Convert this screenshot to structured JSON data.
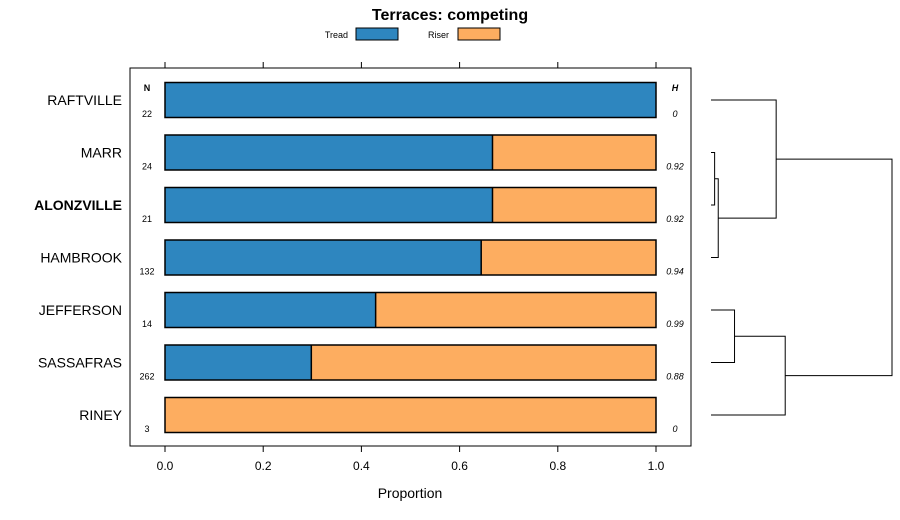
{
  "chart_data": {
    "type": "bar",
    "orientation": "horizontal",
    "stacked": true,
    "title": "Terraces: competing",
    "xlabel": "Proportion",
    "ylabel": "",
    "xlim": [
      -0.07,
      1.07
    ],
    "x_ticks": [
      "0.0",
      "0.2",
      "0.4",
      "0.6",
      "0.8",
      "1.0"
    ],
    "legend": {
      "placement": "top",
      "entries": [
        {
          "name": "Tread",
          "color": "#2e86bf"
        },
        {
          "name": "Riser",
          "color": "#fdad60"
        }
      ]
    },
    "categories": [
      "RAFTVILLE",
      "MARR",
      "ALONZVILLE",
      "HAMBROOK",
      "JEFFERSON",
      "SASSAFRAS",
      "RINEY"
    ],
    "highlighted_category": "ALONZVILLE",
    "series": [
      {
        "name": "Tread",
        "color": "#2e86bf",
        "values": [
          1.0,
          0.667,
          0.667,
          0.644,
          0.429,
          0.298,
          0.0
        ]
      },
      {
        "name": "Riser",
        "color": "#fdad60",
        "values": [
          0.0,
          0.333,
          0.333,
          0.356,
          0.571,
          0.702,
          1.0
        ]
      }
    ],
    "n_header": "N",
    "n_values": [
      "22",
      "24",
      "21",
      "132",
      "14",
      "262",
      "3"
    ],
    "h_header": "H",
    "h_values": [
      "0",
      "0.92",
      "0.92",
      "0.94",
      "0.99",
      "0.88",
      "0"
    ],
    "dendrogram": {
      "note": "cluster tree of the profiles; heights in relative units (0 = leaves)",
      "links": [
        {
          "a": "MARR",
          "b": "ALONZVILLE",
          "height": 0.02
        },
        {
          "a": "(MARR,ALONZVILLE)",
          "b": "HAMBROOK",
          "height": 0.04
        },
        {
          "a": "RAFTVILLE",
          "b": "(MARR,ALONZVILLE,HAMBROOK)",
          "height": 0.36
        },
        {
          "a": "JEFFERSON",
          "b": "SASSAFRAS",
          "height": 0.13
        },
        {
          "a": "(JEFFERSON,SASSAFRAS)",
          "b": "RINEY",
          "height": 0.41
        },
        {
          "a": "upper",
          "b": "lower",
          "height": 1.0
        }
      ]
    }
  }
}
